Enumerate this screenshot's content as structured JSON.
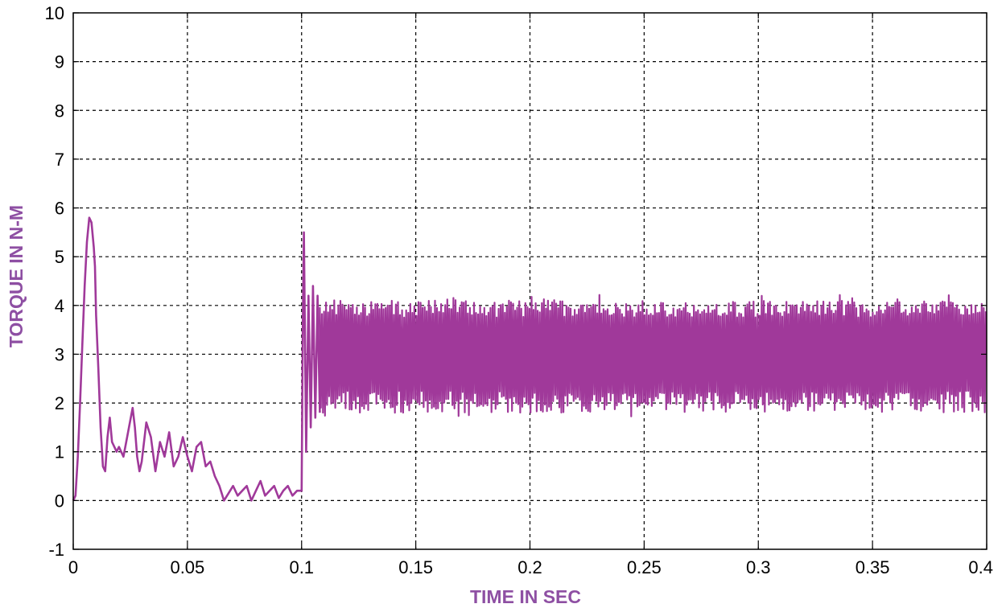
{
  "chart_data": {
    "type": "line",
    "title": "",
    "xlabel": "TIME IN SEC",
    "ylabel": "TORQUE IN N-M",
    "xlim": [
      0,
      0.4
    ],
    "ylim": [
      -1,
      10
    ],
    "x_ticks": [
      0,
      0.05,
      0.1,
      0.15,
      0.2,
      0.25,
      0.3,
      0.35,
      0.4
    ],
    "x_tick_labels": [
      "0",
      "0.05",
      "0.1",
      "0.15",
      "0.2",
      "0.25",
      "0.3",
      "0.35",
      "0.4"
    ],
    "y_ticks": [
      -1,
      0,
      1,
      2,
      3,
      4,
      5,
      6,
      7,
      8,
      9,
      10
    ],
    "y_tick_labels": [
      "-1",
      "0",
      "1",
      "2",
      "3",
      "4",
      "5",
      "6",
      "7",
      "8",
      "9",
      "10"
    ],
    "grid": true,
    "colors": {
      "series": "#A0399A",
      "label": "#8E4FA3"
    },
    "series": [
      {
        "x": [
          0,
          0.001,
          0.002,
          0.003,
          0.004,
          0.005,
          0.006,
          0.007,
          0.008,
          0.009,
          0.0095,
          0.01,
          0.011,
          0.012,
          0.013,
          0.014,
          0.015,
          0.016,
          0.017,
          0.018,
          0.019,
          0.02,
          0.022,
          0.024,
          0.026,
          0.027,
          0.028,
          0.029,
          0.03,
          0.032,
          0.034,
          0.036,
          0.038,
          0.04,
          0.042,
          0.044,
          0.046,
          0.048,
          0.05,
          0.052,
          0.054,
          0.056,
          0.058,
          0.06,
          0.062,
          0.064,
          0.066,
          0.068,
          0.07,
          0.072,
          0.074,
          0.076,
          0.078,
          0.08,
          0.082,
          0.084,
          0.086,
          0.088,
          0.09,
          0.092,
          0.094,
          0.096,
          0.098,
          0.1,
          0.1005,
          0.101,
          0.102,
          0.103,
          0.104,
          0.105,
          0.106,
          0.107,
          0.108
        ],
        "values": [
          0,
          0.1,
          0.9,
          2.0,
          3.2,
          4.4,
          5.3,
          5.8,
          5.7,
          5.2,
          4.8,
          3.8,
          2.7,
          1.5,
          0.7,
          0.6,
          1.3,
          1.7,
          1.2,
          1.1,
          1.0,
          1.1,
          0.9,
          1.4,
          1.9,
          1.5,
          0.9,
          0.6,
          0.8,
          1.6,
          1.3,
          0.6,
          1.2,
          0.9,
          1.4,
          0.7,
          0.9,
          1.3,
          0.9,
          0.6,
          1.1,
          1.2,
          0.7,
          0.8,
          0.5,
          0.3,
          0.0,
          0.15,
          0.3,
          0.1,
          0.2,
          0.3,
          0.0,
          0.2,
          0.4,
          0.1,
          0.2,
          0.3,
          0.05,
          0.2,
          0.3,
          0.1,
          0.2,
          0.2,
          3.5,
          5.5,
          1.0,
          4.2,
          1.5,
          4.4,
          1.7,
          4.2,
          1.8
        ]
      }
    ],
    "steady_band": {
      "x_start": 0.108,
      "x_end": 0.4,
      "lower": 1.8,
      "upper": 4.1,
      "mean": 3.0
    }
  }
}
